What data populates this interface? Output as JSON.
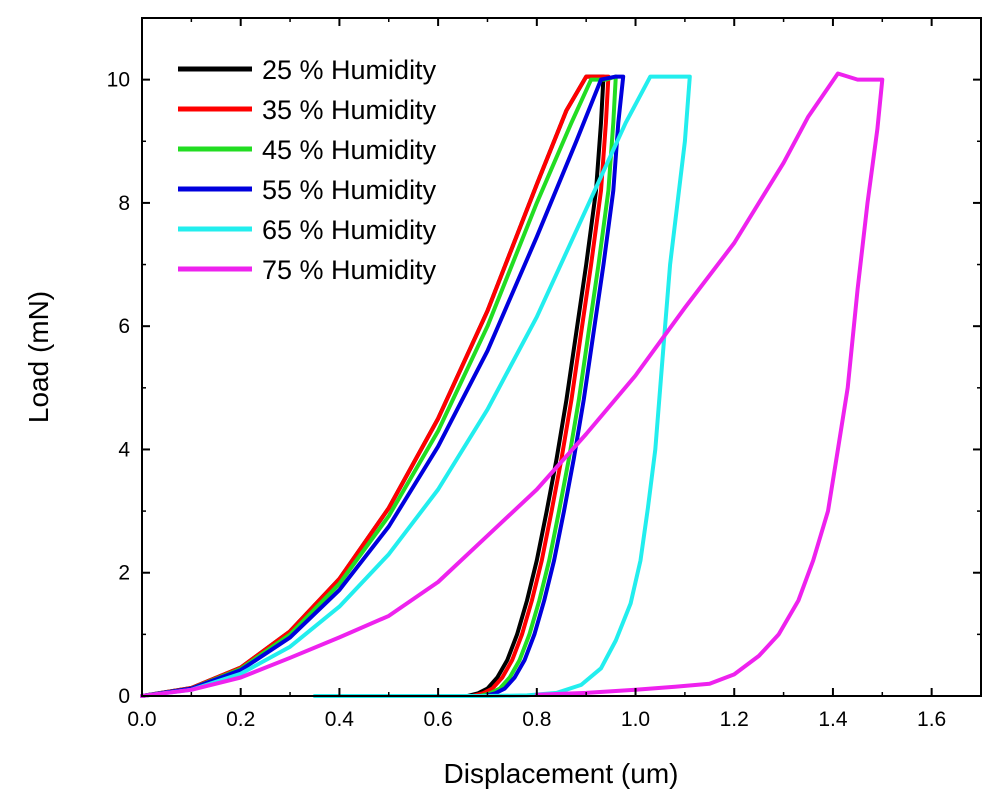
{
  "chart_data": {
    "type": "line",
    "title": "",
    "xlabel": "Displacement (um)",
    "ylabel": "Load (mN)",
    "xlim": [
      0,
      1.7
    ],
    "ylim": [
      0,
      11
    ],
    "x_ticks": [
      0.0,
      0.2,
      0.4,
      0.6,
      0.8,
      1.0,
      1.2,
      1.4,
      1.6
    ],
    "x_tick_labels": [
      "0.0",
      "0.2",
      "0.4",
      "0.6",
      "0.8",
      "1.0",
      "1.2",
      "1.4",
      "1.6"
    ],
    "y_ticks": [
      0,
      2,
      4,
      6,
      8,
      10
    ],
    "y_tick_labels": [
      "0",
      "2",
      "4",
      "6",
      "8",
      "10"
    ],
    "grid": false,
    "legend_position": "top-left",
    "series": [
      {
        "name": "25 % Humidity",
        "color": "#000000",
        "x": [
          0.0,
          0.1,
          0.2,
          0.3,
          0.4,
          0.5,
          0.6,
          0.7,
          0.8,
          0.86,
          0.9,
          0.92,
          0.935,
          0.93,
          0.92,
          0.9,
          0.88,
          0.86,
          0.84,
          0.82,
          0.8,
          0.78,
          0.76,
          0.74,
          0.72,
          0.7,
          0.68,
          0.66,
          0.64
        ],
        "y": [
          0.0,
          0.13,
          0.46,
          1.05,
          1.9,
          3.05,
          4.5,
          6.25,
          8.3,
          9.5,
          10.05,
          10.05,
          10.05,
          9.3,
          8.2,
          7.0,
          5.9,
          4.8,
          3.85,
          3.0,
          2.2,
          1.55,
          1.0,
          0.58,
          0.3,
          0.12,
          0.04,
          0.0,
          0.0
        ]
      },
      {
        "name": "35 % Humidity",
        "color": "#ff0000",
        "x": [
          0.0,
          0.1,
          0.2,
          0.3,
          0.4,
          0.5,
          0.6,
          0.7,
          0.8,
          0.86,
          0.9,
          0.93,
          0.945,
          0.94,
          0.93,
          0.91,
          0.89,
          0.87,
          0.85,
          0.83,
          0.81,
          0.79,
          0.77,
          0.75,
          0.73,
          0.71,
          0.69,
          0.67,
          0.65
        ],
        "y": [
          0.0,
          0.13,
          0.46,
          1.05,
          1.9,
          3.05,
          4.5,
          6.25,
          8.3,
          9.5,
          10.05,
          10.05,
          10.05,
          9.3,
          8.2,
          7.0,
          5.9,
          4.8,
          3.85,
          3.0,
          2.2,
          1.55,
          1.0,
          0.58,
          0.3,
          0.12,
          0.04,
          0.0,
          0.0
        ]
      },
      {
        "name": "45 % Humidity",
        "color": "#22dd22",
        "x": [
          0.0,
          0.1,
          0.2,
          0.3,
          0.4,
          0.5,
          0.6,
          0.7,
          0.8,
          0.87,
          0.91,
          0.94,
          0.96,
          0.955,
          0.945,
          0.925,
          0.905,
          0.885,
          0.865,
          0.845,
          0.825,
          0.805,
          0.785,
          0.765,
          0.745,
          0.725,
          0.705,
          0.685,
          0.665
        ],
        "y": [
          0.0,
          0.12,
          0.44,
          1.0,
          1.82,
          2.92,
          4.3,
          6.0,
          8.0,
          9.3,
          10.0,
          10.0,
          10.05,
          9.3,
          8.2,
          7.0,
          5.9,
          4.8,
          3.85,
          3.0,
          2.2,
          1.55,
          1.0,
          0.58,
          0.3,
          0.12,
          0.04,
          0.0,
          0.0
        ]
      },
      {
        "name": "55 % Humidity",
        "color": "#0000dd",
        "x": [
          0.0,
          0.1,
          0.2,
          0.3,
          0.4,
          0.5,
          0.6,
          0.7,
          0.8,
          0.88,
          0.93,
          0.96,
          0.975,
          0.965,
          0.955,
          0.935,
          0.915,
          0.895,
          0.875,
          0.855,
          0.835,
          0.815,
          0.795,
          0.775,
          0.755,
          0.735,
          0.715,
          0.695,
          0.675
        ],
        "y": [
          0.0,
          0.12,
          0.42,
          0.95,
          1.72,
          2.75,
          4.05,
          5.6,
          7.45,
          9.0,
          10.0,
          10.05,
          10.05,
          9.3,
          8.2,
          7.0,
          5.9,
          4.8,
          3.85,
          3.0,
          2.2,
          1.55,
          1.0,
          0.58,
          0.3,
          0.12,
          0.04,
          0.0,
          0.0
        ]
      },
      {
        "name": "65 % Humidity",
        "color": "#22eeee",
        "x": [
          0.0,
          0.1,
          0.2,
          0.3,
          0.4,
          0.5,
          0.6,
          0.7,
          0.8,
          0.9,
          0.98,
          1.03,
          1.08,
          1.11,
          1.1,
          1.085,
          1.07,
          1.06,
          1.05,
          1.04,
          1.025,
          1.01,
          0.99,
          0.96,
          0.93,
          0.89,
          0.84,
          0.78,
          0.7,
          0.6,
          0.48,
          0.35
        ],
        "y": [
          0.0,
          0.1,
          0.36,
          0.8,
          1.45,
          2.3,
          3.35,
          4.65,
          6.15,
          7.9,
          9.3,
          10.05,
          10.05,
          10.05,
          9.0,
          8.0,
          7.0,
          6.0,
          5.0,
          4.0,
          3.05,
          2.2,
          1.5,
          0.9,
          0.45,
          0.18,
          0.05,
          0.01,
          0.0,
          0.0,
          0.0,
          0.0
        ]
      },
      {
        "name": "75 % Humidity",
        "color": "#ee22ee",
        "x": [
          0.0,
          0.1,
          0.2,
          0.3,
          0.4,
          0.5,
          0.6,
          0.7,
          0.8,
          0.9,
          1.0,
          1.1,
          1.2,
          1.3,
          1.35,
          1.41,
          1.45,
          1.5,
          1.49,
          1.47,
          1.45,
          1.43,
          1.41,
          1.39,
          1.36,
          1.33,
          1.29,
          1.25,
          1.2,
          1.15,
          1.08,
          1.0,
          0.9,
          0.8
        ],
        "y": [
          0.0,
          0.1,
          0.3,
          0.62,
          0.95,
          1.3,
          1.85,
          2.6,
          3.35,
          4.25,
          5.2,
          6.3,
          7.35,
          8.65,
          9.4,
          10.1,
          10.0,
          10.0,
          9.2,
          8.0,
          6.6,
          5.0,
          4.0,
          3.0,
          2.2,
          1.55,
          1.0,
          0.65,
          0.35,
          0.2,
          0.15,
          0.1,
          0.05,
          0.02
        ]
      }
    ]
  }
}
